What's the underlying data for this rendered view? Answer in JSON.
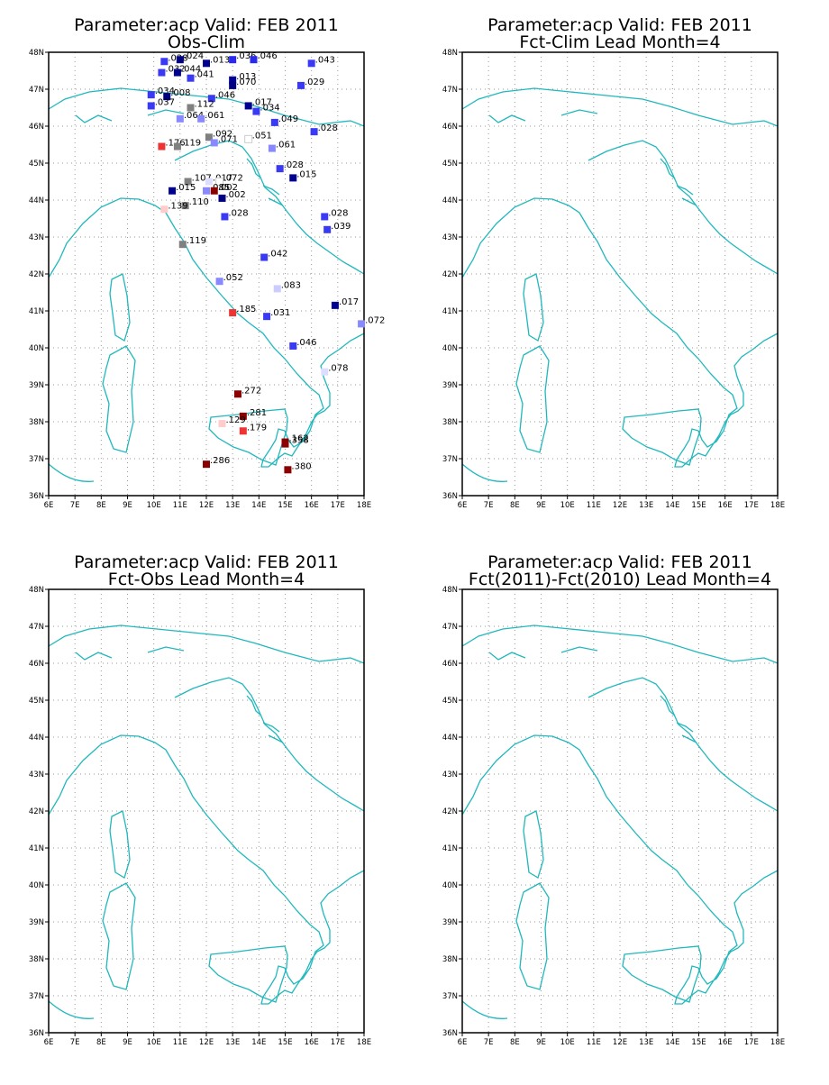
{
  "colors": {
    "coast": "#20b8bd",
    "frame": "#000000",
    "grid": "#9a9a9a"
  },
  "axes": {
    "lon_ticks": [
      "6E",
      "7E",
      "8E",
      "9E",
      "10E",
      "11E",
      "12E",
      "13E",
      "14E",
      "15E",
      "16E",
      "17E",
      "18E"
    ],
    "lat_ticks": [
      "36N",
      "37N",
      "38N",
      "39N",
      "40N",
      "41N",
      "42N",
      "43N",
      "44N",
      "45N",
      "46N",
      "47N",
      "48N"
    ],
    "lon_range": [
      6,
      18
    ],
    "lat_range": [
      36,
      48
    ]
  },
  "panels": [
    {
      "title1": "Parameter:acp Valid: FEB 2011",
      "title2": "Obs-Clim"
    },
    {
      "title1": "Parameter:acp Valid: FEB 2011",
      "title2": "Fct-Clim Lead Month=4"
    },
    {
      "title1": "Parameter:acp Valid: FEB 2011",
      "title2": "Fct-Obs Lead Month=4"
    },
    {
      "title1": "Parameter:acp Valid: FEB 2011",
      "title2": "Fct(2011)-Fct(2010) Lead Month=4"
    }
  ],
  "stations": [
    {
      "label": ".028",
      "lon": 10.4,
      "lat": 47.75,
      "color": "#3a3af5"
    },
    {
      "label": ".024",
      "lon": 11.0,
      "lat": 47.8,
      "color": "#000080"
    },
    {
      "label": ".013",
      "lon": 12.0,
      "lat": 47.7,
      "color": "#000090"
    },
    {
      "label": ".036",
      "lon": 13.0,
      "lat": 47.8,
      "color": "#2a2ae8"
    },
    {
      "label": ".046",
      "lon": 13.8,
      "lat": 47.8,
      "color": "#2a2ae8"
    },
    {
      "label": ".043",
      "lon": 16.0,
      "lat": 47.7,
      "color": "#3a3af5"
    },
    {
      "label": ".032",
      "lon": 10.3,
      "lat": 47.45,
      "color": "#3a3af5"
    },
    {
      "label": ".044",
      "lon": 10.9,
      "lat": 47.45,
      "color": "#000090"
    },
    {
      "label": ".041",
      "lon": 11.4,
      "lat": 47.3,
      "color": "#3a3af5"
    },
    {
      "label": ".013",
      "lon": 13.0,
      "lat": 47.25,
      "color": "#000090"
    },
    {
      "label": ".070",
      "lon": 13.0,
      "lat": 47.1,
      "color": "#000080"
    },
    {
      "label": ".029",
      "lon": 15.6,
      "lat": 47.1,
      "color": "#3a3af5"
    },
    {
      "label": ".034",
      "lon": 9.9,
      "lat": 46.85,
      "color": "#3a3af5"
    },
    {
      "label": ".008",
      "lon": 10.5,
      "lat": 46.8,
      "color": "#000080"
    },
    {
      "label": ".046",
      "lon": 12.2,
      "lat": 46.75,
      "color": "#3a3af5"
    },
    {
      "label": ".037",
      "lon": 9.9,
      "lat": 46.55,
      "color": "#3a3af5"
    },
    {
      "label": ".112",
      "lon": 11.4,
      "lat": 46.5,
      "color": "#808080"
    },
    {
      "label": ".017",
      "lon": 13.6,
      "lat": 46.55,
      "color": "#000090"
    },
    {
      "label": ".034",
      "lon": 13.9,
      "lat": 46.4,
      "color": "#3a3af5"
    },
    {
      "label": ".064",
      "lon": 11.0,
      "lat": 46.2,
      "color": "#8888ff"
    },
    {
      "label": ".061",
      "lon": 11.8,
      "lat": 46.2,
      "color": "#8888ff"
    },
    {
      "label": ".049",
      "lon": 14.6,
      "lat": 46.1,
      "color": "#3a3af5"
    },
    {
      "label": ".028",
      "lon": 16.1,
      "lat": 45.85,
      "color": "#3a3af5"
    },
    {
      "label": ".092",
      "lon": 12.1,
      "lat": 45.7,
      "color": "#808080"
    },
    {
      "label": ".071",
      "lon": 12.3,
      "lat": 45.55,
      "color": "#8888ff"
    },
    {
      "label": ".051",
      "lon": 13.6,
      "lat": 45.65,
      "color": "#ffffff"
    },
    {
      "label": ".176",
      "lon": 10.3,
      "lat": 45.45,
      "color": "#ee3333"
    },
    {
      "label": ".119",
      "lon": 10.9,
      "lat": 45.45,
      "color": "#808080"
    },
    {
      "label": ".061",
      "lon": 14.5,
      "lat": 45.4,
      "color": "#8888ff"
    },
    {
      "label": ".028",
      "lon": 14.8,
      "lat": 44.85,
      "color": "#3a3af5"
    },
    {
      "label": ".015",
      "lon": 15.3,
      "lat": 44.6,
      "color": "#000090"
    },
    {
      "label": ".107",
      "lon": 11.3,
      "lat": 44.5,
      "color": "#808080"
    },
    {
      "label": ".017",
      "lon": 12.1,
      "lat": 44.5,
      "color": "#ddddff"
    },
    {
      "label": ".072",
      "lon": 12.5,
      "lat": 44.5,
      "color": "#ffffff"
    },
    {
      "label": ".085",
      "lon": 12.0,
      "lat": 44.25,
      "color": "#8888ff"
    },
    {
      "label": ".002",
      "lon": 12.3,
      "lat": 44.25,
      "color": "#8b0000"
    },
    {
      "label": ".002",
      "lon": 12.6,
      "lat": 44.05,
      "color": "#000080"
    },
    {
      "label": ".015",
      "lon": 10.7,
      "lat": 44.25,
      "color": "#000090"
    },
    {
      "label": ".110",
      "lon": 11.2,
      "lat": 43.85,
      "color": "#808080"
    },
    {
      "label": ".139",
      "lon": 10.4,
      "lat": 43.75,
      "color": "#ffcccc"
    },
    {
      "label": ".028",
      "lon": 12.7,
      "lat": 43.55,
      "color": "#3a3af5"
    },
    {
      "label": ".028",
      "lon": 16.5,
      "lat": 43.55,
      "color": "#3a3af5"
    },
    {
      "label": ".039",
      "lon": 16.6,
      "lat": 43.2,
      "color": "#3a3af5"
    },
    {
      "label": ".119",
      "lon": 11.1,
      "lat": 42.8,
      "color": "#808080"
    },
    {
      "label": ".042",
      "lon": 14.2,
      "lat": 42.45,
      "color": "#3a3af5"
    },
    {
      "label": ".052",
      "lon": 12.5,
      "lat": 41.8,
      "color": "#8888ff"
    },
    {
      "label": ".083",
      "lon": 14.7,
      "lat": 41.6,
      "color": "#ccccff"
    },
    {
      "label": ".017",
      "lon": 16.9,
      "lat": 41.15,
      "color": "#000090"
    },
    {
      "label": ".185",
      "lon": 13.0,
      "lat": 40.95,
      "color": "#ee3333"
    },
    {
      "label": ".031",
      "lon": 14.3,
      "lat": 40.85,
      "color": "#3a3af5"
    },
    {
      "label": ".072",
      "lon": 17.9,
      "lat": 40.65,
      "color": "#8888ff"
    },
    {
      "label": ".046",
      "lon": 15.3,
      "lat": 40.05,
      "color": "#3a3af5"
    },
    {
      "label": ".078",
      "lon": 16.5,
      "lat": 39.35,
      "color": "#ddddff"
    },
    {
      "label": ".272",
      "lon": 13.2,
      "lat": 38.75,
      "color": "#8b0000"
    },
    {
      "label": ".281",
      "lon": 13.4,
      "lat": 38.15,
      "color": "#8b0000"
    },
    {
      "label": ".129",
      "lon": 12.6,
      "lat": 37.95,
      "color": "#ffcccc"
    },
    {
      "label": ".179",
      "lon": 13.4,
      "lat": 37.75,
      "color": "#ee3333"
    },
    {
      "label": ".162",
      "lon": 15.0,
      "lat": 37.45,
      "color": "#8b0000"
    },
    {
      "label": ".358",
      "lon": 15.0,
      "lat": 37.4,
      "color": "#8b0000"
    },
    {
      "label": ".286",
      "lon": 12.0,
      "lat": 36.85,
      "color": "#8b0000"
    },
    {
      "label": ".380",
      "lon": 15.1,
      "lat": 36.7,
      "color": "#8b0000"
    }
  ]
}
